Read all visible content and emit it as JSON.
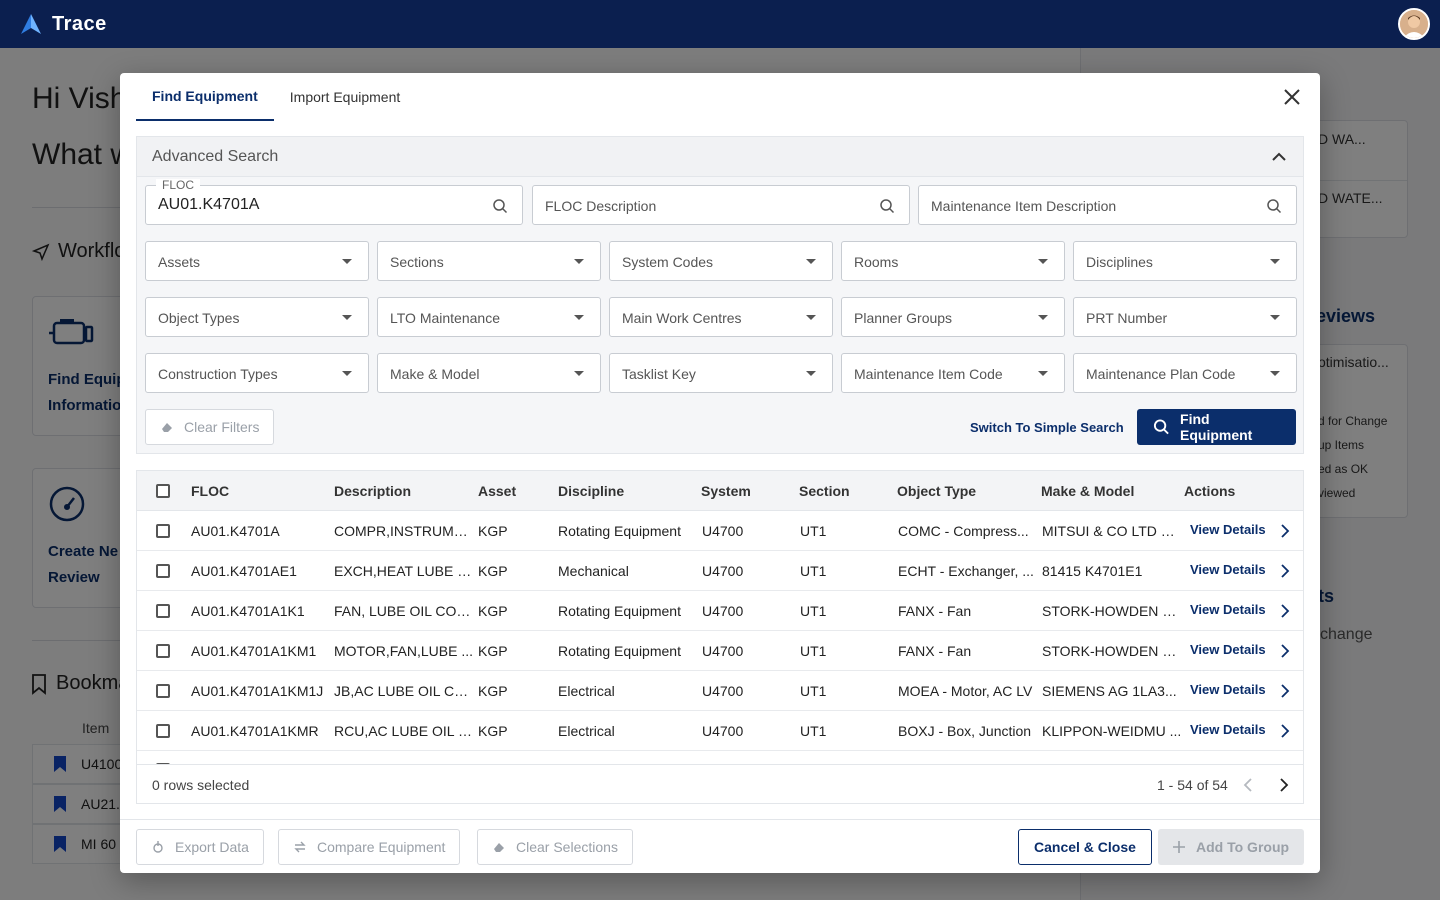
{
  "app": {
    "name": "Trace"
  },
  "background": {
    "greeting_line1": "Hi Vish",
    "greeting_line2": "What w",
    "workflows_heading": "Workflo",
    "card1_line1": "Find Equip",
    "card1_line2": "Informatio",
    "card2_line1": "Create Ne",
    "card2_line2": "Review",
    "bookmarks_heading": "Bookma",
    "bookmarks_col": "Item",
    "bookmarks": [
      "U4100",
      "AU21.",
      "MI 60"
    ],
    "side": {
      "box1_item1": "D WA...",
      "box1_item2": "D WATE...",
      "reviews_heading": "eviews",
      "review_title": "otimisatio...",
      "review_lines": [
        "d for Change",
        "up Items",
        "ed as OK",
        "viewed"
      ],
      "ts_heading": "ts",
      "ts_text": "change"
    }
  },
  "modal": {
    "tabs": [
      {
        "label": "Find Equipment",
        "active": true
      },
      {
        "label": "Import Equipment",
        "active": false
      }
    ],
    "advanced_search": {
      "title": "Advanced Search",
      "floc": {
        "label": "FLOC",
        "value": "AU01.K4701A"
      },
      "floc_description": {
        "placeholder": "FLOC Description"
      },
      "maintenance_item_description": {
        "placeholder": "Maintenance Item Description"
      },
      "dropdowns_row1": [
        "Assets",
        "Sections",
        "System Codes",
        "Rooms",
        "Disciplines"
      ],
      "dropdowns_row2": [
        "Object Types",
        "LTO Maintenance",
        "Main Work Centres",
        "Planner Groups",
        "PRT Number"
      ],
      "dropdowns_row3": [
        "Construction Types",
        "Make & Model",
        "Tasklist Key",
        "Maintenance Item Code",
        "Maintenance Plan Code"
      ],
      "clear_filters": "Clear Filters",
      "switch_simple": "Switch To Simple Search",
      "find_button": "Find Equipment"
    },
    "table": {
      "headers": [
        "FLOC",
        "Description",
        "Asset",
        "Discipline",
        "System",
        "Section",
        "Object Type",
        "Make & Model",
        "Actions"
      ],
      "rows": [
        [
          "AU01.K4701A",
          "COMPR,INSTRUME...",
          "KGP",
          "Rotating Equipment",
          "U4700",
          "UT1",
          "COMC - Compress...",
          "MITSUI & CO LTD H..."
        ],
        [
          "AU01.K4701AE1",
          "EXCH,HEAT LUBE O...",
          "KGP",
          "Mechanical",
          "U4700",
          "UT1",
          "ECHT - Exchanger, ...",
          "81415 K4701E1"
        ],
        [
          "AU01.K4701A1K1",
          "FAN, LUBE OIL COO...",
          "KGP",
          "Rotating Equipment",
          "U4700",
          "UT1",
          "FANX - Fan",
          "STORK-HOWDEN G..."
        ],
        [
          "AU01.K4701A1KM1",
          "MOTOR,FAN,LUBE ...",
          "KGP",
          "Rotating Equipment",
          "U4700",
          "UT1",
          "FANX - Fan",
          "STORK-HOWDEN G..."
        ],
        [
          "AU01.K4701A1KM1J",
          "JB,AC LUBE OIL CO...",
          "KGP",
          "Electrical",
          "U4700",
          "UT1",
          "MOEA - Motor, AC LV",
          "SIEMENS AG 1LA3..."
        ],
        [
          "AU01.K4701A1KMR",
          "RCU,AC LUBE OIL O...",
          "KGP",
          "Electrical",
          "U4700",
          "UT1",
          "BOXJ - Box, Junction",
          "KLIPPON-WEIDMU ..."
        ]
      ],
      "view_details": "View Details",
      "rows_selected": "0 rows selected",
      "pagination": "1 - 54 of 54"
    },
    "footer": {
      "export": "Export Data",
      "compare": "Compare Equipment",
      "clear_selections": "Clear Selections",
      "cancel": "Cancel & Close",
      "add_group": "Add To Group"
    }
  },
  "colors": {
    "navy": "#0b2e6b",
    "topbar": "#0b1f4f",
    "overlay": "rgba(0,0,0,0.5)"
  }
}
